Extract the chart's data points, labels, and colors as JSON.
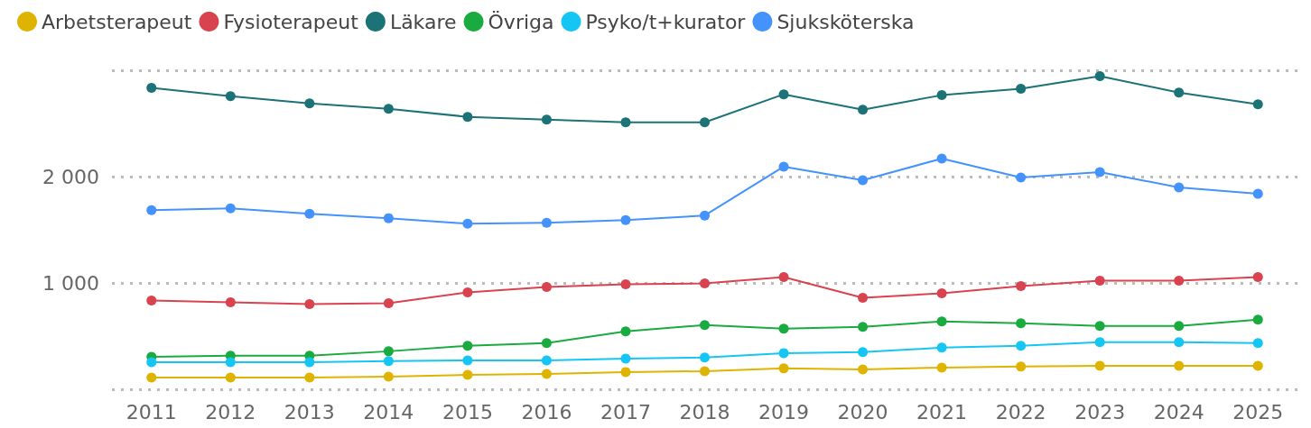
{
  "chart_data": {
    "type": "line",
    "categories": [
      "2011",
      "2012",
      "2013",
      "2014",
      "2015",
      "2016",
      "2017",
      "2018",
      "2019",
      "2020",
      "2021",
      "2022",
      "2023",
      "2024",
      "2025"
    ],
    "series": [
      {
        "name": "Arbetsterapeut",
        "color": "#dfb400",
        "values": [
          111,
          111,
          111,
          119,
          136,
          145,
          162,
          170,
          196,
          187,
          204,
          213,
          221,
          221,
          221
        ]
      },
      {
        "name": "Fysioterapeut",
        "color": "#d9434f",
        "values": [
          834,
          817,
          800,
          809,
          911,
          962,
          987,
          996,
          1055,
          860,
          902,
          970,
          1021,
          1021,
          1055
        ]
      },
      {
        "name": "Läkare",
        "color": "#1b7277",
        "values": [
          2834,
          2757,
          2689,
          2638,
          2562,
          2536,
          2511,
          2511,
          2774,
          2630,
          2766,
          2826,
          2945,
          2791,
          2681
        ]
      },
      {
        "name": "Övriga",
        "color": "#1aab40",
        "values": [
          306,
          315,
          315,
          357,
          409,
          434,
          545,
          604,
          570,
          587,
          638,
          621,
          596,
          596,
          655
        ]
      },
      {
        "name": "Psyko/t+kurator",
        "color": "#15c6f4",
        "values": [
          255,
          255,
          255,
          264,
          272,
          272,
          289,
          298,
          340,
          349,
          391,
          409,
          443,
          443,
          434
        ]
      },
      {
        "name": "Sjuksköterska",
        "color": "#4493fd",
        "values": [
          1685,
          1702,
          1651,
          1609,
          1557,
          1566,
          1591,
          1634,
          2094,
          1966,
          2170,
          1991,
          2043,
          1898,
          1838
        ]
      }
    ],
    "ylim": [
      0,
      3000
    ],
    "yticks": [
      {
        "value": 0,
        "label": null
      },
      {
        "value": 1000,
        "label": "1 000"
      },
      {
        "value": 2000,
        "label": "2 000"
      }
    ],
    "grid": "y",
    "legend": "top left",
    "marker": "circle",
    "line_style": "solid"
  }
}
